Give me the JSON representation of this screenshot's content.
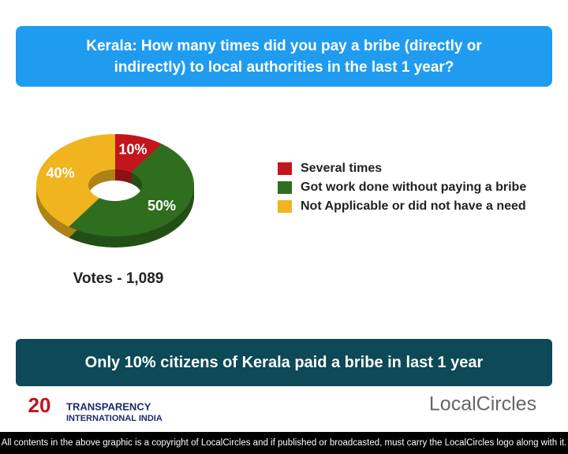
{
  "chart_data": {
    "type": "pie",
    "donut": true,
    "title": "Kerala: How many times did you pay a bribe (directly or indirectly) to local authorities in the last 1 year?",
    "categories": [
      "Several times",
      "Got work done without paying a bribe",
      "Not Applicable or did not have a need"
    ],
    "values": [
      10,
      50,
      40
    ],
    "value_labels": [
      "10%",
      "50%",
      "40%"
    ],
    "colors": [
      "#c3161c",
      "#2f6e1f",
      "#f0b41e"
    ],
    "annotation": "Votes - 1,089"
  },
  "banner": "Only 10% citizens of Kerala paid a bribe in last 1 year",
  "logos": {
    "transparency_line1": "TRANSPARENCY",
    "transparency_line2": "INTERNATIONAL INDIA",
    "transparency_badge": "20",
    "localcircles": "LocalCircles"
  },
  "footer": "All contents in the above graphic is a copyright of LocalCircles and if published or broadcasted, must carry the LocalCircles logo along with it."
}
